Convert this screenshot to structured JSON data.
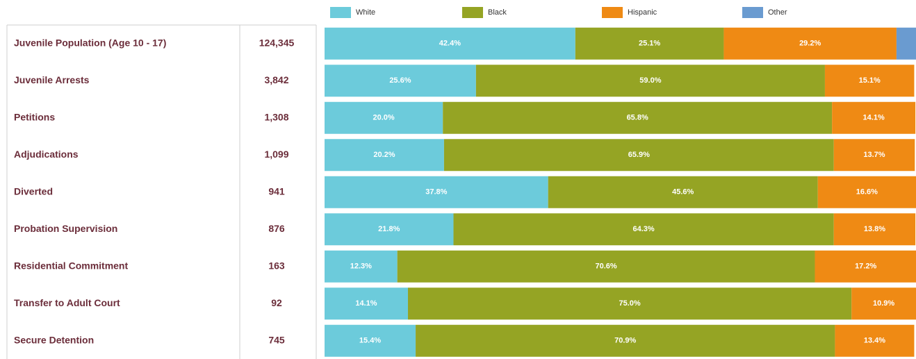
{
  "chart_data": {
    "type": "stacked-bar",
    "categories": [
      "Juvenile Population (Age 10 - 17)",
      "Juvenile Arrests",
      "Petitions",
      "Adjudications",
      "Diverted",
      "Probation Supervision",
      "Residential Commitment",
      "Transfer to Adult Court",
      "Secure Detention"
    ],
    "counts": [
      "124,345",
      "3,842",
      "1,308",
      "1,099",
      "941",
      "876",
      "163",
      "92",
      "745"
    ],
    "xlim": [
      0,
      100
    ],
    "series": [
      {
        "name": "White",
        "color": "#6ccbdb",
        "values": [
          42.4,
          25.6,
          20.0,
          20.2,
          37.8,
          21.8,
          12.3,
          14.1,
          15.4
        ],
        "value_labels": [
          "42.4%",
          "25.6%",
          "20.0%",
          "20.2%",
          "37.8%",
          "21.8%",
          "12.3%",
          "14.1%",
          "15.4%"
        ]
      },
      {
        "name": "Black",
        "color": "#95a424",
        "values": [
          25.1,
          59.0,
          65.8,
          65.9,
          45.6,
          64.3,
          70.6,
          75.0,
          70.9
        ],
        "value_labels": [
          "25.1%",
          "59.0%",
          "65.8%",
          "65.9%",
          "45.6%",
          "64.3%",
          "70.6%",
          "75.0%",
          "70.9%"
        ]
      },
      {
        "name": "Hispanic",
        "color": "#ef8a14",
        "values": [
          29.2,
          15.1,
          14.1,
          13.7,
          16.6,
          13.8,
          17.2,
          10.9,
          13.4
        ],
        "value_labels": [
          "29.2%",
          "15.1%",
          "14.1%",
          "13.7%",
          "16.6%",
          "13.8%",
          "17.2%",
          "10.9%",
          "13.4%"
        ]
      },
      {
        "name": "Other",
        "color": "#6a9bd0",
        "values": [
          3.3,
          null,
          null,
          null,
          null,
          null,
          null,
          null,
          null
        ],
        "value_labels": [
          null,
          null,
          null,
          null,
          null,
          null,
          null,
          null,
          null
        ]
      }
    ]
  }
}
